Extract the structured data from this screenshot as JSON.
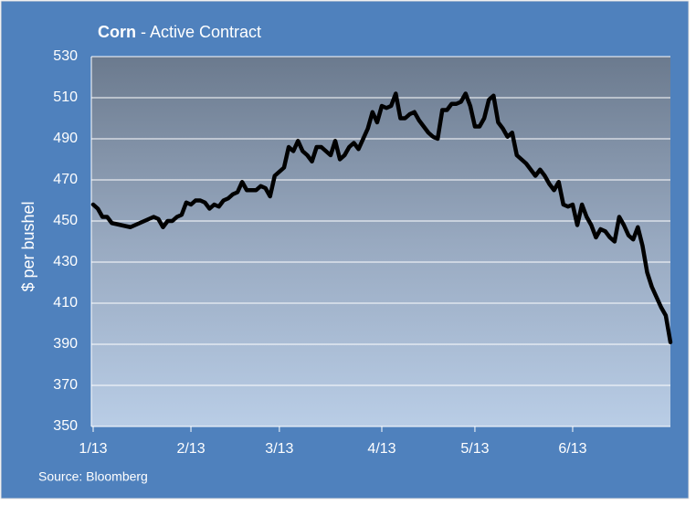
{
  "chart_data": {
    "type": "line",
    "title": "Corn",
    "title_rest": " - Active Contract",
    "y_label": "$ per bushel",
    "source": "Source: Bloomberg",
    "categories": [
      "1/13",
      null,
      null,
      null,
      null,
      null,
      null,
      null,
      null,
      null,
      null,
      null,
      null,
      null,
      null,
      null,
      null,
      null,
      null,
      null,
      null,
      "2/13",
      null,
      null,
      null,
      null,
      null,
      null,
      null,
      null,
      null,
      null,
      null,
      null,
      null,
      null,
      null,
      null,
      null,
      null,
      "3/13",
      null,
      null,
      null,
      null,
      null,
      null,
      null,
      null,
      null,
      null,
      null,
      null,
      null,
      null,
      null,
      null,
      null,
      null,
      null,
      null,
      null,
      "4/13",
      null,
      null,
      null,
      null,
      null,
      null,
      null,
      null,
      null,
      null,
      null,
      null,
      null,
      null,
      null,
      null,
      null,
      null,
      null,
      "5/13",
      null,
      null,
      null,
      null,
      null,
      null,
      null,
      null,
      null,
      null,
      null,
      null,
      null,
      null,
      null,
      null,
      null,
      null,
      null,
      null,
      "6/13",
      null,
      null,
      null,
      null,
      null,
      null,
      null,
      null,
      null,
      null,
      null,
      null,
      null,
      null,
      null,
      null,
      null,
      null,
      null,
      null,
      null
    ],
    "series": [
      {
        "name": "Corn",
        "color": "#000000",
        "values": [
          458,
          456,
          452,
          452,
          449,
          448.5,
          448,
          447.5,
          447,
          448,
          449,
          450,
          451,
          452,
          451,
          447,
          450,
          450,
          452,
          453,
          459,
          458,
          460,
          460,
          459,
          456,
          458,
          457,
          460,
          461,
          463,
          464,
          469,
          465,
          465,
          465,
          467,
          466,
          462,
          472,
          474,
          476,
          486,
          484,
          489,
          484,
          482,
          479,
          486,
          486,
          484,
          482,
          489,
          480,
          482,
          486,
          488,
          485,
          490,
          495,
          503,
          498,
          506,
          505,
          506,
          512,
          500,
          500,
          502,
          503,
          499,
          496,
          493,
          491,
          490,
          504,
          504,
          507,
          507,
          508,
          512,
          506,
          496,
          496,
          500,
          509,
          511,
          498,
          495,
          491,
          493,
          482,
          480,
          478,
          475,
          472,
          475,
          472,
          468,
          465,
          469,
          458,
          457,
          458,
          448,
          458,
          452,
          448,
          442,
          446,
          445,
          442,
          440,
          452,
          448,
          443,
          441,
          447,
          438,
          425,
          418,
          413,
          408,
          404,
          391
        ]
      }
    ],
    "ylim": [
      350,
      530
    ],
    "yticks": [
      350,
      370,
      390,
      410,
      430,
      450,
      470,
      490,
      510,
      530
    ],
    "grid": true
  }
}
